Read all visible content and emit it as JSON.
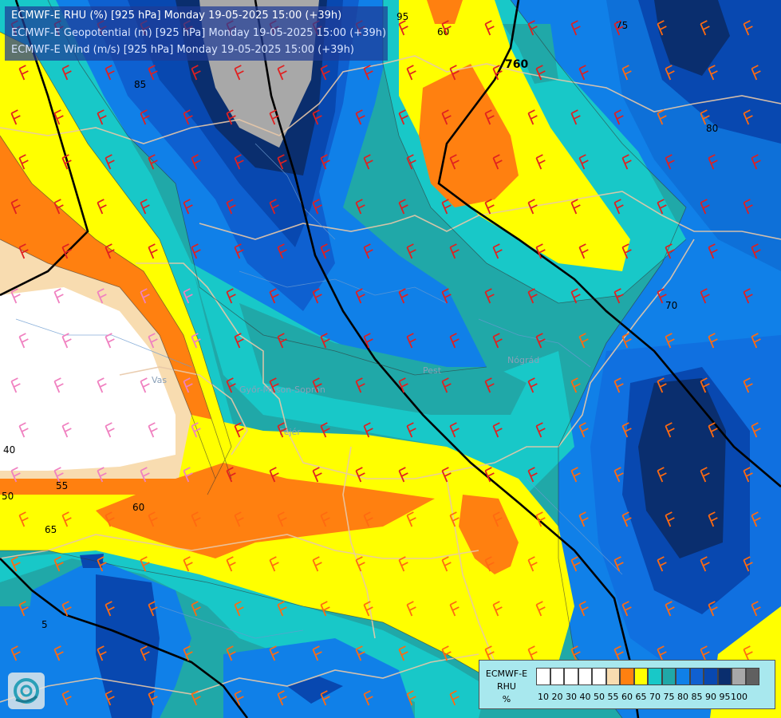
{
  "title": {
    "line1": "ECMWF-E RHU (%) [925 hPa] Monday 19-05-2025 15:00 (+39h)",
    "line2": "ECMWF-E Geopotential (m) [925 hPa] Monday 19-05-2025 15:00 (+39h)",
    "line3": "ECMWF-E Wind (m/s) [925 hPa] Monday 19-05-2025 15:00 (+39h)"
  },
  "contour_labels": {
    "c40": "40",
    "c50": "50",
    "c55": "55",
    "c60a": "60",
    "c65a": "65",
    "c85": "85",
    "c95": "95",
    "c60b": "60",
    "c75": "75",
    "c80": "80",
    "c70": "70",
    "c760": "760",
    "c5": "5",
    "c70b": "70"
  },
  "place_labels": {
    "vas": "Vas",
    "gyor": "Győr-Moson-Sopron",
    "fejer": "Fejér",
    "pest": "Pest",
    "nograd": "Nógrád"
  },
  "legend": {
    "title_line1": "ECMWF-E",
    "title_line2": "RHU",
    "title_line3": "%",
    "tick_labels": [
      "10",
      "20",
      "30",
      "40",
      "50",
      "55",
      "60",
      "65",
      "70",
      "75",
      "80",
      "85",
      "90",
      "95",
      "100"
    ],
    "colors": [
      "#ffffff",
      "#ffffff",
      "#ffffff",
      "#ffffff",
      "#ffffff",
      "#f8dcb0",
      "#ff8010",
      "#ffff00",
      "#18c8c8",
      "#20a8a8",
      "#1080e8",
      "#1060d0",
      "#0848b0",
      "#0a2e6e",
      "#a8a8a8",
      "#606060"
    ]
  }
}
